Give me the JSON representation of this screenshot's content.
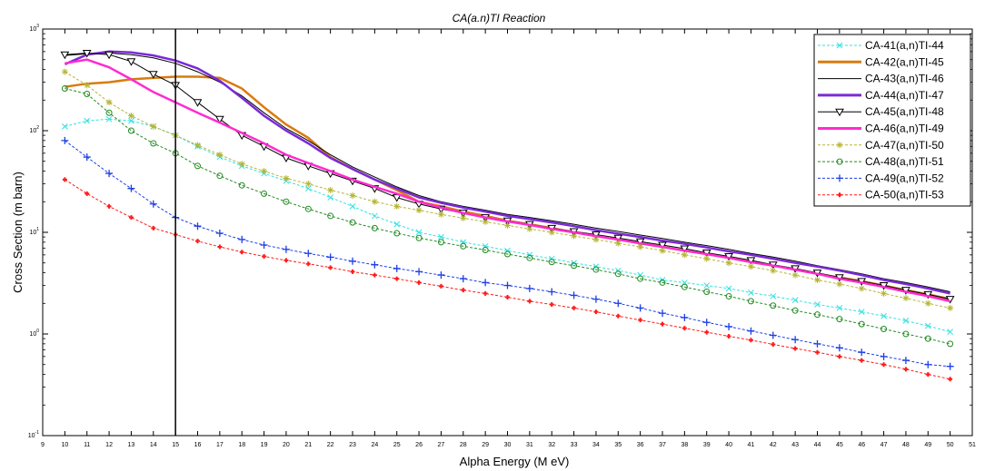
{
  "chart_data": {
    "type": "line",
    "title": "CA(a.n)TI Reaction",
    "xlabel": "Alpha Energy (M eV)",
    "ylabel": "Cross Section (m barn)",
    "xlim": [
      9,
      51
    ],
    "ylim_log10": [
      -1,
      3
    ],
    "yscale": "log",
    "x_ticks": [
      "9",
      "10",
      "11",
      "12",
      "13",
      "14",
      "15",
      "16",
      "17",
      "18",
      "19",
      "20",
      "21",
      "22",
      "23",
      "24",
      "25",
      "26",
      "27",
      "28",
      "29",
      "30",
      "31",
      "32",
      "33",
      "34",
      "35",
      "36",
      "37",
      "38",
      "39",
      "40",
      "41",
      "42",
      "43",
      "44",
      "45",
      "46",
      "47",
      "48",
      "49",
      "50",
      "51"
    ],
    "y_ticks": [
      {
        "base": "10",
        "exp": "-1",
        "value": 0.1
      },
      {
        "base": "10",
        "exp": "0",
        "value": 1
      },
      {
        "base": "10",
        "exp": "1",
        "value": 10
      },
      {
        "base": "10",
        "exp": "2",
        "value": 100
      },
      {
        "base": "10",
        "exp": "3",
        "value": 1000
      }
    ],
    "vertical_marker_x": 15,
    "legend_position": "top-right",
    "x": [
      10,
      11,
      12,
      13,
      14,
      15,
      16,
      17,
      18,
      19,
      20,
      21,
      22,
      23,
      24,
      25,
      26,
      27,
      28,
      29,
      30,
      31,
      32,
      33,
      34,
      35,
      36,
      37,
      38,
      39,
      40,
      41,
      42,
      43,
      44,
      45,
      46,
      47,
      48,
      49,
      50
    ],
    "series": [
      {
        "name": "CA-41(a,n)TI-44",
        "color": "#33e0e0",
        "style": "x-dashed",
        "values": [
          110,
          125,
          130,
          125,
          110,
          90,
          70,
          55,
          45,
          38,
          32,
          27,
          22,
          18,
          14.5,
          12,
          10,
          9,
          8,
          7.3,
          6.6,
          6.0,
          5.5,
          5.0,
          4.6,
          4.2,
          3.8,
          3.4,
          3.2,
          3.0,
          2.8,
          2.55,
          2.35,
          2.15,
          1.95,
          1.8,
          1.65,
          1.5,
          1.35,
          1.2,
          1.05
        ]
      },
      {
        "name": "CA-42(a,n)TI-45",
        "color": "#d97b0f",
        "style": "thick",
        "values": [
          270,
          290,
          300,
          320,
          330,
          340,
          340,
          330,
          260,
          170,
          115,
          85,
          55,
          42,
          33,
          26,
          20,
          18,
          16,
          14.5,
          13,
          12,
          11,
          10,
          9.2,
          8.5,
          7.8,
          7.2,
          6.6,
          6.1,
          5.6,
          5.1,
          4.7,
          4.3,
          3.9,
          3.6,
          3.3,
          3.0,
          2.7,
          2.45,
          2.2
        ]
      },
      {
        "name": "CA-43(a,n)TI-46",
        "color": "#000000",
        "style": "thin",
        "values": [
          550,
          570,
          580,
          560,
          520,
          460,
          380,
          300,
          220,
          150,
          105,
          80,
          58,
          44,
          35,
          28,
          23,
          20,
          18,
          16.5,
          15,
          14,
          13,
          12,
          11,
          10.2,
          9.4,
          8.7,
          8.0,
          7.4,
          6.8,
          6.2,
          5.7,
          5.2,
          4.7,
          4.3,
          3.9,
          3.5,
          3.2,
          2.9,
          2.6
        ]
      },
      {
        "name": "CA-44(a,n)TI-47",
        "color": "#7a2ad6",
        "style": "thick",
        "values": [
          450,
          560,
          600,
          590,
          550,
          490,
          410,
          310,
          210,
          140,
          100,
          75,
          54,
          42,
          33,
          27,
          22,
          19.5,
          17.5,
          16,
          14.5,
          13.5,
          12.5,
          11.5,
          10.5,
          9.7,
          9.0,
          8.3,
          7.7,
          7.1,
          6.5,
          6.0,
          5.5,
          5.0,
          4.6,
          4.2,
          3.8,
          3.4,
          3.1,
          2.8,
          2.5
        ]
      },
      {
        "name": "CA-45(a,n)TI-48",
        "color": "#000000",
        "style": "triangle-down",
        "values": [
          560,
          580,
          560,
          480,
          360,
          280,
          190,
          130,
          90,
          70,
          54,
          45,
          38,
          32,
          27,
          22,
          19,
          17,
          15.5,
          14,
          13,
          12,
          11,
          10.2,
          9.5,
          8.8,
          8.1,
          7.5,
          6.9,
          6.3,
          5.8,
          5.3,
          4.8,
          4.4,
          4.0,
          3.6,
          3.3,
          3.0,
          2.7,
          2.45,
          2.2
        ]
      },
      {
        "name": "CA-46(a,n)TI-49",
        "color": "#ff2bd0",
        "style": "thick",
        "values": [
          460,
          500,
          420,
          320,
          240,
          190,
          150,
          120,
          95,
          75,
          58,
          48,
          40,
          33,
          28,
          24,
          20,
          17.5,
          15.5,
          14,
          12.8,
          11.8,
          10.8,
          10,
          9.2,
          8.5,
          7.8,
          7.2,
          6.6,
          6.1,
          5.6,
          5.1,
          4.7,
          4.3,
          3.9,
          3.5,
          3.2,
          2.9,
          2.6,
          2.35,
          2.1
        ]
      },
      {
        "name": "CA-47(a,n)TI-50",
        "color": "#b5b535",
        "style": "star-dashed",
        "values": [
          380,
          280,
          190,
          140,
          110,
          90,
          72,
          58,
          47,
          40,
          34,
          30,
          26,
          23,
          20,
          18,
          16.5,
          15,
          13.8,
          12.7,
          11.7,
          10.8,
          10,
          9.2,
          8.5,
          7.8,
          7.2,
          6.6,
          6.0,
          5.5,
          5.0,
          4.6,
          4.2,
          3.8,
          3.4,
          3.1,
          2.8,
          2.5,
          2.25,
          2.0,
          1.8
        ]
      },
      {
        "name": "CA-48(a,n)TI-51",
        "color": "#228b22",
        "style": "circle-dashed",
        "values": [
          260,
          230,
          150,
          100,
          75,
          60,
          45,
          36,
          29,
          24,
          20,
          17,
          14.5,
          12.5,
          11,
          9.8,
          8.8,
          8.0,
          7.3,
          6.7,
          6.1,
          5.6,
          5.1,
          4.7,
          4.3,
          3.9,
          3.5,
          3.2,
          2.9,
          2.6,
          2.35,
          2.1,
          1.9,
          1.7,
          1.55,
          1.4,
          1.25,
          1.12,
          1.0,
          0.9,
          0.8
        ]
      },
      {
        "name": "CA-49(a,n)TI-52",
        "color": "#1c3fe6",
        "style": "plus-dashed",
        "values": [
          80,
          55,
          38,
          27,
          19,
          14,
          11.5,
          9.8,
          8.5,
          7.5,
          6.8,
          6.2,
          5.7,
          5.2,
          4.8,
          4.4,
          4.1,
          3.8,
          3.5,
          3.2,
          3.0,
          2.8,
          2.6,
          2.4,
          2.2,
          2.0,
          1.8,
          1.6,
          1.45,
          1.3,
          1.18,
          1.07,
          0.97,
          0.88,
          0.8,
          0.73,
          0.66,
          0.6,
          0.55,
          0.5,
          0.48
        ]
      },
      {
        "name": "CA-50(a,n)TI-53",
        "color": "#ff1a1a",
        "style": "dot-dashed",
        "values": [
          33,
          24,
          18,
          14,
          11,
          9.5,
          8.2,
          7.2,
          6.4,
          5.8,
          5.3,
          4.9,
          4.5,
          4.1,
          3.8,
          3.5,
          3.2,
          2.95,
          2.7,
          2.5,
          2.3,
          2.1,
          1.95,
          1.8,
          1.65,
          1.5,
          1.37,
          1.25,
          1.14,
          1.04,
          0.95,
          0.87,
          0.79,
          0.72,
          0.66,
          0.6,
          0.55,
          0.5,
          0.45,
          0.4,
          0.36
        ]
      }
    ]
  }
}
